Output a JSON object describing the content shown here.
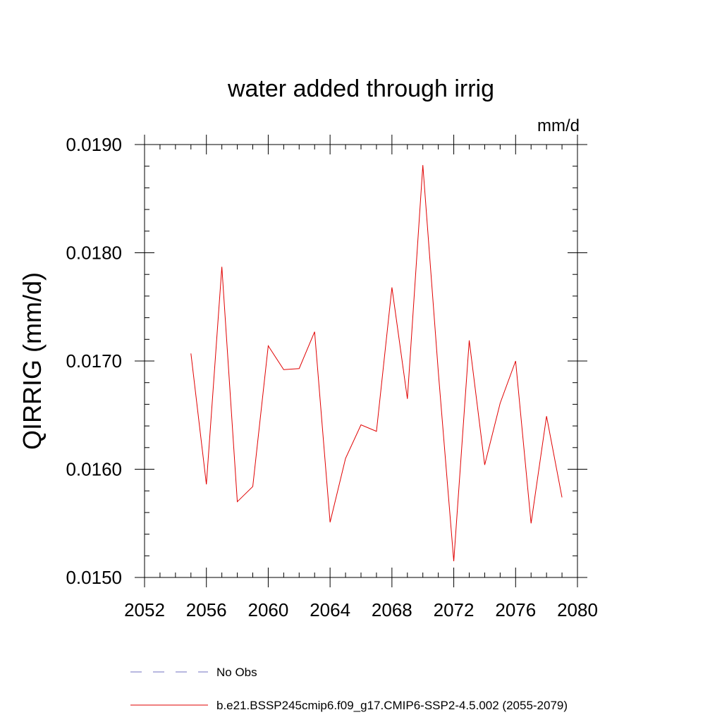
{
  "chart_data": {
    "type": "line",
    "title": "water added through irrig",
    "units": "mm/d",
    "ylabel": "QIRRIG  (mm/d)",
    "xlabel": "",
    "xlim": [
      2052,
      2080
    ],
    "ylim": [
      0.015,
      0.019
    ],
    "x_ticks": [
      2052,
      2056,
      2060,
      2064,
      2068,
      2072,
      2076,
      2080
    ],
    "x_tick_labels": [
      "2052",
      "2056",
      "2060",
      "2064",
      "2068",
      "2072",
      "2076",
      "2080"
    ],
    "y_ticks": [
      0.015,
      0.016,
      0.017,
      0.018,
      0.019
    ],
    "y_tick_labels": [
      "0.0150",
      "0.0160",
      "0.0170",
      "0.0180",
      "0.0190"
    ],
    "grid": false,
    "series": [
      {
        "name": "b.e21.BSSP245cmip6.f09_g17.CMIP6-SSP2-4.5.002 (2055-2079)",
        "color": "#e00000",
        "x": [
          2055,
          2056,
          2057,
          2058,
          2059,
          2060,
          2061,
          2062,
          2063,
          2064,
          2065,
          2066,
          2067,
          2068,
          2069,
          2070,
          2071,
          2072,
          2073,
          2074,
          2075,
          2076,
          2077,
          2078,
          2079
        ],
        "y": [
          0.01707,
          0.01586,
          0.01787,
          0.0157,
          0.01584,
          0.01714,
          0.01692,
          0.01693,
          0.01727,
          0.01551,
          0.0161,
          0.01641,
          0.01635,
          0.01768,
          0.01665,
          0.01881,
          0.0169,
          0.01515,
          0.01719,
          0.01604,
          0.01661,
          0.017,
          0.0155,
          0.01649,
          0.01574
        ]
      }
    ],
    "legend": {
      "position": "bottom",
      "entries": [
        {
          "label": "No Obs",
          "style": "dashed",
          "color": "#7070c0"
        },
        {
          "label": "b.e21.BSSP245cmip6.f09_g17.CMIP6-SSP2-4.5.002 (2055-2079)",
          "style": "solid",
          "color": "#e00000"
        }
      ]
    }
  }
}
